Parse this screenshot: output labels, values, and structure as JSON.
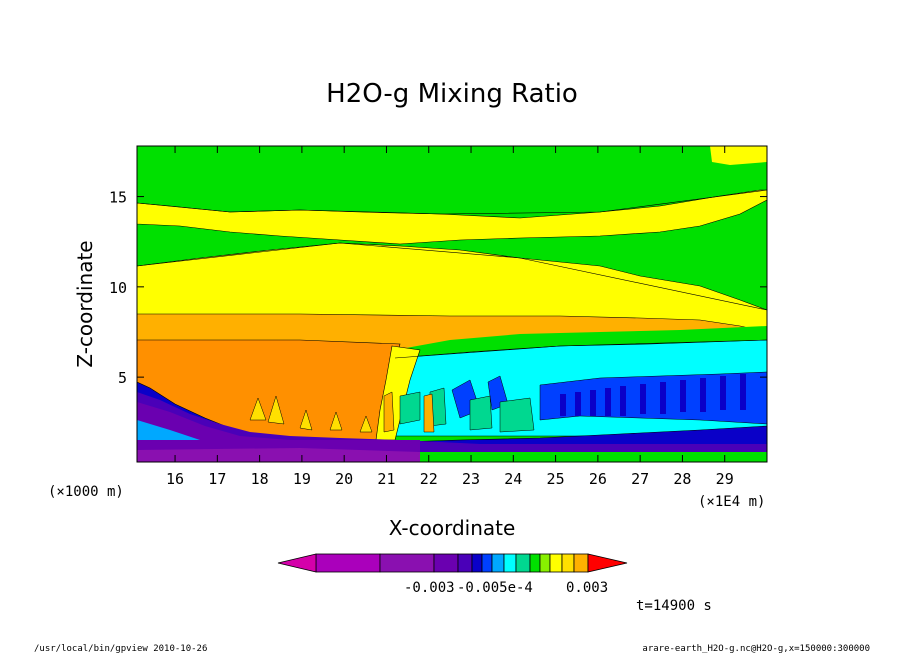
{
  "chart_data": {
    "type": "heatmap",
    "title": "H2O-g Mixing Ratio",
    "xlabel": "X-coordinate",
    "ylabel": "Z-coordinate",
    "x_unit_left": "(×1000 m)",
    "x_unit_right": "(×1E4 m)",
    "x_ticks": [
      16,
      17,
      18,
      19,
      20,
      21,
      22,
      23,
      24,
      25,
      26,
      27,
      28,
      29
    ],
    "y_ticks": [
      5,
      10,
      15
    ],
    "xlim": [
      15.1,
      30.0
    ],
    "ylim": [
      0.3,
      17.8
    ],
    "grid": false,
    "colorbar": {
      "colors": [
        "#d400aa",
        "#aa00bb",
        "#8a10b0",
        "#6a00b0",
        "#4a00b8",
        "#0a00c8",
        "#0040ff",
        "#00a8ff",
        "#00ffff",
        "#00d890",
        "#00e000",
        "#88f000",
        "#ffff00",
        "#ffe000",
        "#ffb000",
        "#ff9000",
        "#ff0000"
      ],
      "labels": [
        "-0.003",
        "-0.005e-4",
        "0.003"
      ]
    },
    "time_label": "t=14900 s"
  },
  "footer": {
    "left": "/usr/local/bin/gpview   2010-10-26",
    "right": "arare-earth_H2O-g.nc@H2O-g,x=150000:300000"
  }
}
